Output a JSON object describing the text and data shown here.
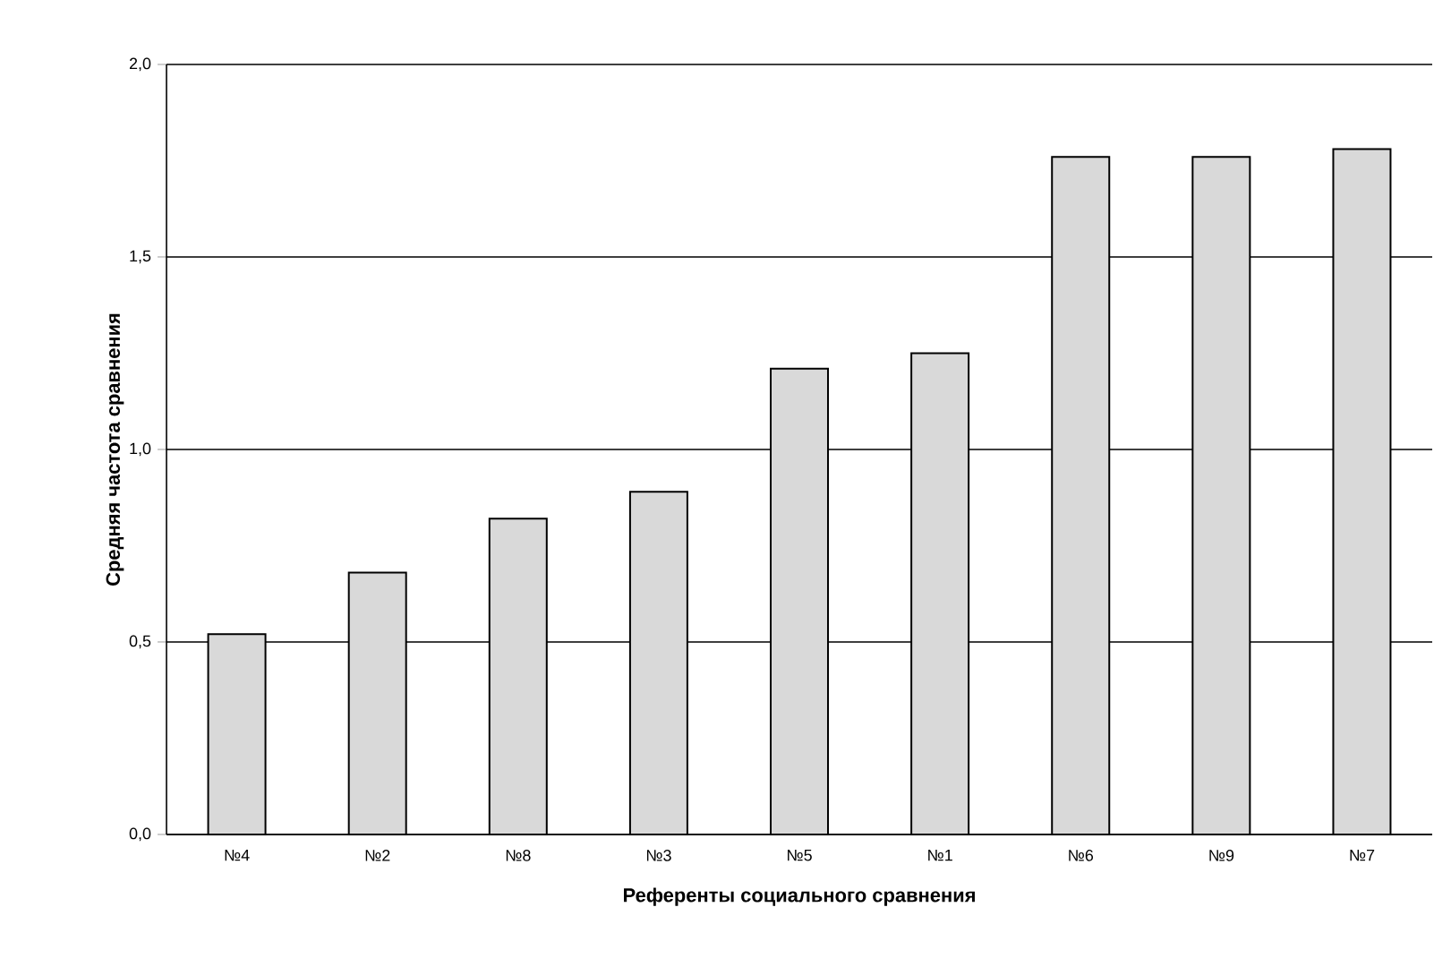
{
  "chart_data": {
    "type": "bar",
    "xlabel": "Референты социального сравнения",
    "ylabel": "Средняя частота сравнения",
    "categories": [
      "№4",
      "№2",
      "№8",
      "№3",
      "№5",
      "№1",
      "№6",
      "№9",
      "№7"
    ],
    "values": [
      0.52,
      0.68,
      0.82,
      0.89,
      1.21,
      1.25,
      1.76,
      1.76,
      1.78
    ],
    "color": "#d9d9d9",
    "ylim": [
      0,
      2.0
    ],
    "yticks": [
      {
        "value": 0,
        "label": "0,0"
      },
      {
        "value": 0.5,
        "label": "0,5"
      },
      {
        "value": 1.0,
        "label": "1,0"
      },
      {
        "value": 1.5,
        "label": "1,5"
      },
      {
        "value": 2.0,
        "label": "2,0"
      }
    ],
    "grid": "y"
  }
}
